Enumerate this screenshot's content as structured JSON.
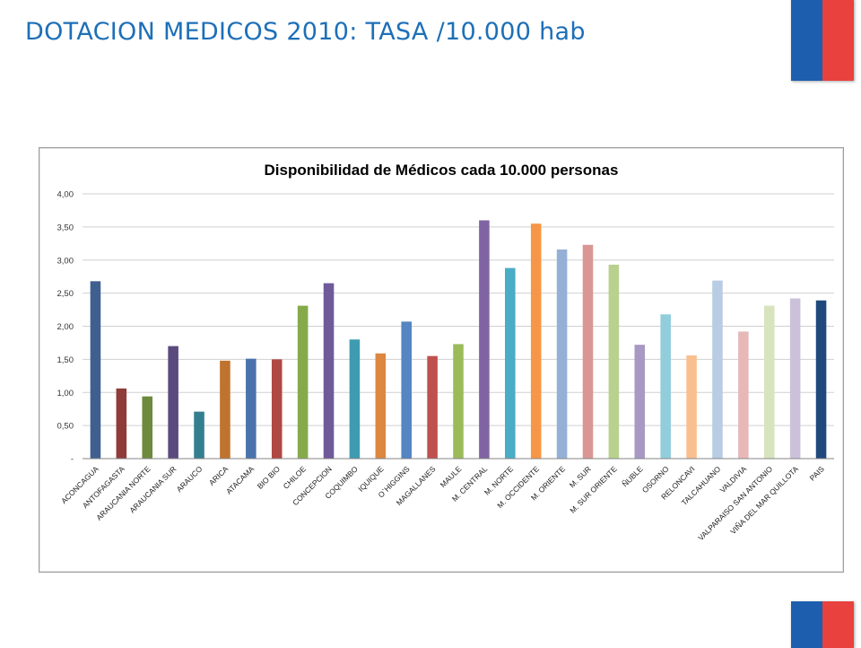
{
  "slide": {
    "title": "DOTACION MEDICOS 2010: TASA /10.000 hab"
  },
  "colors": {
    "title": "#1d6fb8",
    "flag_blue": "#1d5fae",
    "flag_red": "#e8413e"
  },
  "chart_data": {
    "type": "bar",
    "title": "Disponibilidad de Médicos cada 10.000 personas",
    "xlabel": "",
    "ylabel": "",
    "ylim": [
      0,
      4
    ],
    "yticks": [
      0,
      0.5,
      1.0,
      1.5,
      2.0,
      2.5,
      3.0,
      3.5,
      4.0
    ],
    "ytick_labels": [
      "-",
      "0,50",
      "1,00",
      "1,50",
      "2,00",
      "2,50",
      "3,00",
      "3,50",
      "4,00"
    ],
    "grid": true,
    "legend": "none",
    "categories": [
      "ACONCAGUA",
      "ANTOFAGASTA",
      "ARAUCANIA NORTE",
      "ARAUCANIA SUR",
      "ARAUCO",
      "ARICA",
      "ATACAMA",
      "BIO BIO",
      "CHILOE",
      "CONCEPCION",
      "COQUIMBO",
      "IQUIQUE",
      "O`HIGGINS",
      "MAGALLANES",
      "MAULE",
      "M. CENTRAL",
      "M. NORTE",
      "M. OCCIDENTE",
      "M. ORIENTE",
      "M. SUR",
      "M. SUR ORIENTE",
      "ÑUBLE",
      "OSORNO",
      "RELONCAVI",
      "TALCAHUANO",
      "VALDIVIA",
      "VALPARAISO SAN ANTONIO",
      "VIÑA DEL MAR QUILLOTA",
      "PAIS"
    ],
    "values": [
      2.68,
      1.06,
      0.94,
      1.7,
      0.71,
      1.48,
      1.51,
      1.5,
      2.31,
      2.65,
      1.8,
      1.59,
      2.07,
      1.55,
      1.73,
      3.6,
      2.88,
      3.55,
      3.16,
      3.23,
      2.93,
      1.72,
      2.18,
      1.56,
      2.69,
      1.92,
      2.31,
      2.42,
      2.39
    ],
    "bar_colors": [
      "#3f5f8f",
      "#8e3b3a",
      "#6d8a3e",
      "#5b4a7e",
      "#347f8f",
      "#c0732e",
      "#4a73ad",
      "#b04843",
      "#86aa4a",
      "#6f5a9a",
      "#3f9bb0",
      "#dd8840",
      "#5585c2",
      "#c0504d",
      "#9bbb59",
      "#8064a2",
      "#4bacc6",
      "#f79646",
      "#95b0d6",
      "#d99694",
      "#b9d18e",
      "#a799c4",
      "#92cddc",
      "#fabf8f",
      "#b8cce4",
      "#e6b9b8",
      "#d7e4bd",
      "#ccc1da",
      "#1f497d"
    ]
  }
}
